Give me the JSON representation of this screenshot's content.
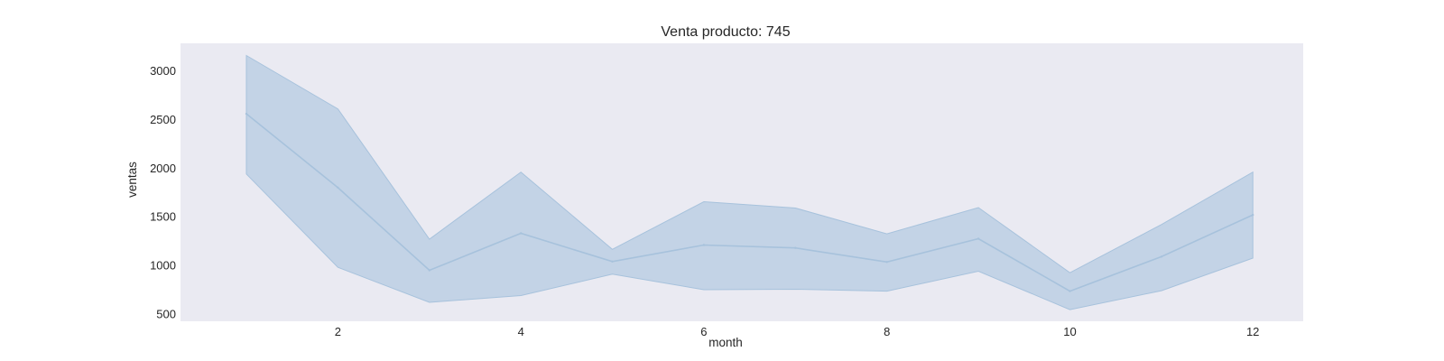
{
  "chart_data": {
    "type": "line",
    "title": "Venta producto: 745",
    "xlabel": "month",
    "ylabel": "ventas",
    "x": [
      1,
      2,
      3,
      4,
      5,
      6,
      7,
      8,
      9,
      10,
      11,
      12
    ],
    "series": [
      {
        "values": [
          2560,
          1800,
          950,
          1330,
          1040,
          1210,
          1180,
          1035,
          1275,
          735,
          1090,
          1520
        ],
        "ci_upper": [
          3160,
          2610,
          1270,
          1960,
          1165,
          1655,
          1590,
          1325,
          1595,
          925,
          1420,
          1960
        ],
        "ci_lower": [
          1940,
          980,
          620,
          690,
          910,
          750,
          755,
          735,
          940,
          545,
          740,
          1075
        ]
      }
    ],
    "xticks": [
      2,
      4,
      6,
      8,
      10,
      12
    ],
    "yticks": [
      500,
      1000,
      1500,
      2000,
      2500,
      3000
    ],
    "xlim": [
      0.28,
      12.55
    ],
    "ylim": [
      425,
      3285
    ],
    "grid": false,
    "colors": {
      "plot_background": "#eaeaf2",
      "line": "#a7c2dc",
      "band_fill": "#aec6de",
      "band_edge": "#a7c2dc"
    }
  }
}
